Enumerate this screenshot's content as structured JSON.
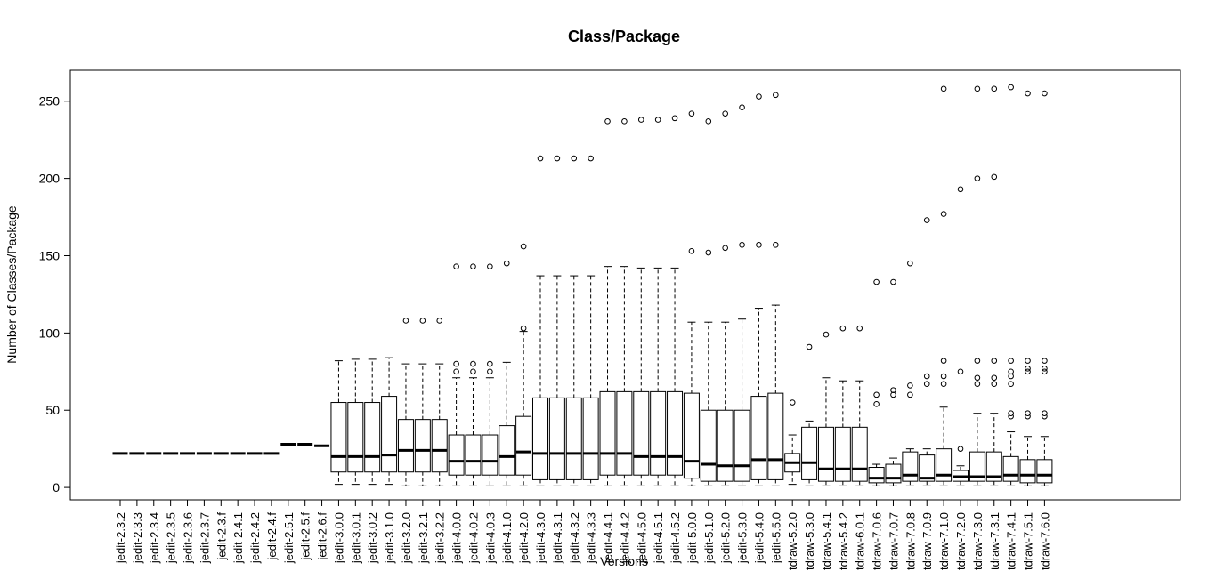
{
  "chart_data": {
    "type": "boxplot",
    "title": "Class/Package",
    "xlabel": "Versions",
    "ylabel": "Number of Classes/Package",
    "ylim": [
      -8,
      270
    ],
    "yticks": [
      0,
      50,
      100,
      150,
      200,
      250
    ],
    "grid": false,
    "legend": "none",
    "categories": [
      "jedit-2.3.2",
      "jedit-2.3.3",
      "jedit-2.3.4",
      "jedit-2.3.5",
      "jedit-2.3.6",
      "jedit-2.3.7",
      "jedit-2.3.f",
      "jedit-2.4.1",
      "jedit-2.4.2",
      "jedit-2.4.f",
      "jedit-2.5.1",
      "jedit-2.5.f",
      "jedit-2.6.f",
      "jedit-3.0.0",
      "jedit-3.0.1",
      "jedit-3.0.2",
      "jedit-3.1.0",
      "jedit-3.2.0",
      "jedit-3.2.1",
      "jedit-3.2.2",
      "jedit-4.0.0",
      "jedit-4.0.2",
      "jedit-4.0.3",
      "jedit-4.1.0",
      "jedit-4.2.0",
      "jedit-4.3.0",
      "jedit-4.3.1",
      "jedit-4.3.2",
      "jedit-4.3.3",
      "jedit-4.4.1",
      "jedit-4.4.2",
      "jedit-4.5.0",
      "jedit-4.5.1",
      "jedit-4.5.2",
      "jedit-5.0.0",
      "jedit-5.1.0",
      "jedit-5.2.0",
      "jedit-5.3.0",
      "jedit-5.4.0",
      "jedit-5.5.0",
      "tdraw-5.2.0",
      "tdraw-5.3.0",
      "tdraw-5.4.1",
      "tdraw-5.4.2",
      "tdraw-6.0.1",
      "tdraw-7.0.6",
      "tdraw-7.0.7",
      "tdraw-7.0.8",
      "tdraw-7.0.9",
      "tdraw-7.1.0",
      "tdraw-7.2.0",
      "tdraw-7.3.0",
      "tdraw-7.3.1",
      "tdraw-7.4.1",
      "tdraw-7.5.1",
      "tdraw-7.6.0"
    ],
    "boxes": [
      {
        "min": 22,
        "q1": 22,
        "median": 22,
        "q3": 22,
        "max": 22,
        "outliers": []
      },
      {
        "min": 22,
        "q1": 22,
        "median": 22,
        "q3": 22,
        "max": 22,
        "outliers": []
      },
      {
        "min": 22,
        "q1": 22,
        "median": 22,
        "q3": 22,
        "max": 22,
        "outliers": []
      },
      {
        "min": 22,
        "q1": 22,
        "median": 22,
        "q3": 22,
        "max": 22,
        "outliers": []
      },
      {
        "min": 22,
        "q1": 22,
        "median": 22,
        "q3": 22,
        "max": 22,
        "outliers": []
      },
      {
        "min": 22,
        "q1": 22,
        "median": 22,
        "q3": 22,
        "max": 22,
        "outliers": []
      },
      {
        "min": 22,
        "q1": 22,
        "median": 22,
        "q3": 22,
        "max": 22,
        "outliers": []
      },
      {
        "min": 22,
        "q1": 22,
        "median": 22,
        "q3": 22,
        "max": 22,
        "outliers": []
      },
      {
        "min": 22,
        "q1": 22,
        "median": 22,
        "q3": 22,
        "max": 22,
        "outliers": []
      },
      {
        "min": 22,
        "q1": 22,
        "median": 22,
        "q3": 22,
        "max": 22,
        "outliers": []
      },
      {
        "min": 28,
        "q1": 28,
        "median": 28,
        "q3": 28,
        "max": 28,
        "outliers": []
      },
      {
        "min": 28,
        "q1": 28,
        "median": 28,
        "q3": 28,
        "max": 28,
        "outliers": []
      },
      {
        "min": 27,
        "q1": 27,
        "median": 27,
        "q3": 27,
        "max": 27,
        "outliers": []
      },
      {
        "min": 2,
        "q1": 10,
        "median": 20,
        "q3": 55,
        "max": 82,
        "outliers": []
      },
      {
        "min": 2,
        "q1": 10,
        "median": 20,
        "q3": 55,
        "max": 83,
        "outliers": []
      },
      {
        "min": 2,
        "q1": 10,
        "median": 20,
        "q3": 55,
        "max": 83,
        "outliers": []
      },
      {
        "min": 2,
        "q1": 10,
        "median": 21,
        "q3": 59,
        "max": 84,
        "outliers": []
      },
      {
        "min": 1,
        "q1": 10,
        "median": 24,
        "q3": 44,
        "max": 80,
        "outliers": [
          108
        ]
      },
      {
        "min": 1,
        "q1": 10,
        "median": 24,
        "q3": 44,
        "max": 80,
        "outliers": [
          108
        ]
      },
      {
        "min": 1,
        "q1": 10,
        "median": 24,
        "q3": 44,
        "max": 80,
        "outliers": [
          108
        ]
      },
      {
        "min": 1,
        "q1": 8,
        "median": 17,
        "q3": 34,
        "max": 71,
        "outliers": [
          75,
          80,
          143
        ]
      },
      {
        "min": 1,
        "q1": 8,
        "median": 17,
        "q3": 34,
        "max": 71,
        "outliers": [
          75,
          80,
          143
        ]
      },
      {
        "min": 1,
        "q1": 8,
        "median": 17,
        "q3": 34,
        "max": 71,
        "outliers": [
          75,
          80,
          143
        ]
      },
      {
        "min": 1,
        "q1": 8,
        "median": 20,
        "q3": 40,
        "max": 81,
        "outliers": [
          145
        ]
      },
      {
        "min": 1,
        "q1": 8,
        "median": 23,
        "q3": 46,
        "max": 101,
        "outliers": [
          103,
          156
        ]
      },
      {
        "min": 1,
        "q1": 5,
        "median": 22,
        "q3": 58,
        "max": 137,
        "outliers": [
          213
        ]
      },
      {
        "min": 1,
        "q1": 5,
        "median": 22,
        "q3": 58,
        "max": 137,
        "outliers": [
          213
        ]
      },
      {
        "min": 1,
        "q1": 5,
        "median": 22,
        "q3": 58,
        "max": 137,
        "outliers": [
          213
        ]
      },
      {
        "min": 1,
        "q1": 5,
        "median": 22,
        "q3": 58,
        "max": 137,
        "outliers": [
          213
        ]
      },
      {
        "min": 1,
        "q1": 8,
        "median": 22,
        "q3": 62,
        "max": 143,
        "outliers": [
          237
        ]
      },
      {
        "min": 1,
        "q1": 8,
        "median": 22,
        "q3": 62,
        "max": 143,
        "outliers": [
          237
        ]
      },
      {
        "min": 1,
        "q1": 8,
        "median": 20,
        "q3": 62,
        "max": 142,
        "outliers": [
          238
        ]
      },
      {
        "min": 1,
        "q1": 8,
        "median": 20,
        "q3": 62,
        "max": 142,
        "outliers": [
          238
        ]
      },
      {
        "min": 1,
        "q1": 8,
        "median": 20,
        "q3": 62,
        "max": 142,
        "outliers": [
          239
        ]
      },
      {
        "min": 1,
        "q1": 6,
        "median": 17,
        "q3": 61,
        "max": 107,
        "outliers": [
          153,
          242
        ]
      },
      {
        "min": 1,
        "q1": 4,
        "median": 15,
        "q3": 50,
        "max": 107,
        "outliers": [
          152,
          237
        ]
      },
      {
        "min": 1,
        "q1": 4,
        "median": 14,
        "q3": 50,
        "max": 107,
        "outliers": [
          155,
          242
        ]
      },
      {
        "min": 1,
        "q1": 4,
        "median": 14,
        "q3": 50,
        "max": 109,
        "outliers": [
          157,
          246
        ]
      },
      {
        "min": 1,
        "q1": 5,
        "median": 18,
        "q3": 59,
        "max": 116,
        "outliers": [
          157,
          253
        ]
      },
      {
        "min": 1,
        "q1": 5,
        "median": 18,
        "q3": 61,
        "max": 118,
        "outliers": [
          157,
          254
        ]
      },
      {
        "min": 2,
        "q1": 10,
        "median": 16,
        "q3": 22,
        "max": 34,
        "outliers": [
          55
        ]
      },
      {
        "min": 1,
        "q1": 5,
        "median": 16,
        "q3": 39,
        "max": 43,
        "outliers": [
          91
        ]
      },
      {
        "min": 1,
        "q1": 4,
        "median": 12,
        "q3": 39,
        "max": 71,
        "outliers": [
          99
        ]
      },
      {
        "min": 1,
        "q1": 4,
        "median": 12,
        "q3": 39,
        "max": 69,
        "outliers": [
          103
        ]
      },
      {
        "min": 1,
        "q1": 4,
        "median": 12,
        "q3": 39,
        "max": 69,
        "outliers": [
          103
        ]
      },
      {
        "min": 1,
        "q1": 3,
        "median": 6,
        "q3": 13,
        "max": 15,
        "outliers": [
          54,
          60,
          133
        ]
      },
      {
        "min": 1,
        "q1": 3,
        "median": 6,
        "q3": 15,
        "max": 19,
        "outliers": [
          60,
          63,
          133
        ]
      },
      {
        "min": 1,
        "q1": 4,
        "median": 8,
        "q3": 23,
        "max": 25,
        "outliers": [
          60,
          66,
          145
        ]
      },
      {
        "min": 1,
        "q1": 4,
        "median": 6,
        "q3": 21,
        "max": 25,
        "outliers": [
          67,
          72,
          173
        ]
      },
      {
        "min": 1,
        "q1": 4,
        "median": 8,
        "q3": 25,
        "max": 52,
        "outliers": [
          67,
          72,
          82,
          177,
          258
        ]
      },
      {
        "min": 1,
        "q1": 4,
        "median": 7,
        "q3": 11,
        "max": 14,
        "outliers": [
          25,
          75,
          193
        ]
      },
      {
        "min": 1,
        "q1": 4,
        "median": 7,
        "q3": 23,
        "max": 48,
        "outliers": [
          67,
          71,
          82,
          200,
          258
        ]
      },
      {
        "min": 1,
        "q1": 4,
        "median": 7,
        "q3": 23,
        "max": 48,
        "outliers": [
          67,
          71,
          82,
          201,
          258
        ]
      },
      {
        "min": 1,
        "q1": 4,
        "median": 8,
        "q3": 20,
        "max": 36,
        "outliers": [
          46,
          48,
          67,
          72,
          75,
          82,
          259
        ]
      },
      {
        "min": 1,
        "q1": 3,
        "median": 8,
        "q3": 18,
        "max": 33,
        "outliers": [
          46,
          48,
          75,
          77,
          82,
          255
        ]
      },
      {
        "min": 1,
        "q1": 3,
        "median": 8,
        "q3": 18,
        "max": 33,
        "outliers": [
          46,
          48,
          75,
          77,
          82,
          255
        ]
      }
    ]
  }
}
